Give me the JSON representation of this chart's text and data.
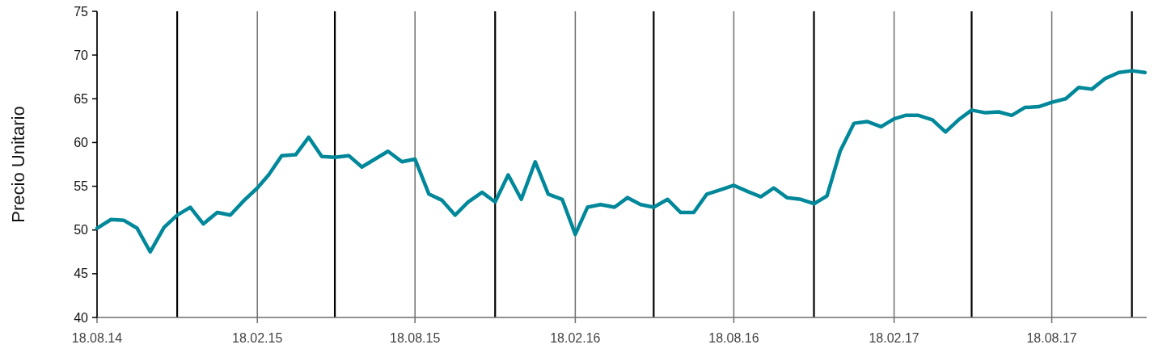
{
  "chart_data": {
    "type": "line",
    "ylabel": "Precio Unitario",
    "x": [
      "2014-08-18",
      "2014-09-03",
      "2014-09-18",
      "2014-10-03",
      "2014-10-18",
      "2014-11-03",
      "2014-11-18",
      "2014-12-03",
      "2014-12-18",
      "2015-01-03",
      "2015-01-18",
      "2015-02-03",
      "2015-02-18",
      "2015-03-03",
      "2015-03-18",
      "2015-04-03",
      "2015-04-18",
      "2015-05-03",
      "2015-05-18",
      "2015-06-03",
      "2015-06-18",
      "2015-07-03",
      "2015-07-18",
      "2015-08-03",
      "2015-08-18",
      "2015-09-03",
      "2015-09-18",
      "2015-10-03",
      "2015-10-18",
      "2015-11-03",
      "2015-11-18",
      "2015-12-03",
      "2015-12-18",
      "2016-01-03",
      "2016-01-18",
      "2016-02-03",
      "2016-02-18",
      "2016-03-03",
      "2016-03-18",
      "2016-04-03",
      "2016-04-18",
      "2016-05-03",
      "2016-05-18",
      "2016-06-03",
      "2016-06-18",
      "2016-07-03",
      "2016-07-18",
      "2016-08-03",
      "2016-08-18",
      "2016-09-03",
      "2016-09-18",
      "2016-10-03",
      "2016-10-18",
      "2016-11-03",
      "2016-11-18",
      "2016-12-03",
      "2016-12-18",
      "2017-01-03",
      "2017-01-18",
      "2017-02-03",
      "2017-02-18",
      "2017-03-03",
      "2017-03-18",
      "2017-04-03",
      "2017-04-18",
      "2017-05-03",
      "2017-05-18",
      "2017-06-03",
      "2017-06-18",
      "2017-07-03",
      "2017-07-18",
      "2017-08-03",
      "2017-08-18",
      "2017-09-03",
      "2017-09-18",
      "2017-10-03",
      "2017-10-18",
      "2017-11-03",
      "2017-11-18",
      "2017-12-03"
    ],
    "series": [
      {
        "color": "#00889a",
        "values": [
          50.2,
          51.2,
          51.1,
          50.2,
          47.5,
          50.3,
          51.7,
          52.6,
          50.7,
          52.0,
          51.7,
          53.4,
          54.8,
          56.3,
          58.5,
          58.6,
          60.6,
          58.4,
          58.3,
          58.5,
          57.2,
          58.1,
          59.0,
          57.8,
          58.1,
          54.1,
          53.4,
          51.7,
          53.2,
          54.3,
          53.2,
          56.3,
          53.5,
          57.8,
          54.1,
          53.5,
          49.5,
          52.6,
          52.9,
          52.6,
          53.7,
          52.9,
          52.6,
          53.5,
          52.0,
          52.0,
          54.1,
          54.6,
          55.1,
          54.4,
          53.8,
          54.8,
          53.7,
          53.5,
          53.0,
          53.9,
          59.0,
          62.2,
          62.4,
          61.8,
          62.7,
          63.1,
          63.1,
          62.6,
          61.2,
          62.6,
          63.7,
          63.4,
          63.5,
          63.1,
          64.0,
          64.1,
          64.6,
          65.0,
          66.3,
          66.1,
          67.3,
          68.0,
          68.2,
          68.0
        ]
      }
    ],
    "xlim": [
      "2014-08-18",
      "2017-12-05"
    ],
    "xticks": [
      {
        "value": "2014-08-18",
        "label": "18.08.14"
      },
      {
        "value": "2015-02-18",
        "label": "18.02.15"
      },
      {
        "value": "2015-08-18",
        "label": "18.08.15"
      },
      {
        "value": "2016-02-18",
        "label": "18.02.16"
      },
      {
        "value": "2016-08-18",
        "label": "18.08.16"
      },
      {
        "value": "2017-02-18",
        "label": "18.02.17"
      },
      {
        "value": "2017-08-18",
        "label": "18.08.17"
      }
    ],
    "ylim": [
      40,
      75
    ],
    "yticks": [
      40,
      45,
      50,
      55,
      60,
      65,
      70,
      75
    ],
    "grid": "x",
    "marker": "none",
    "line_style": "solid",
    "ref_lines": [
      {
        "axis": "x",
        "value": "2014-11-18",
        "color": "#000000"
      },
      {
        "axis": "x",
        "value": "2015-05-18",
        "color": "#000000"
      },
      {
        "axis": "x",
        "value": "2015-11-18",
        "color": "#000000"
      },
      {
        "axis": "x",
        "value": "2016-05-18",
        "color": "#000000"
      },
      {
        "axis": "x",
        "value": "2016-11-18",
        "color": "#000000"
      },
      {
        "axis": "x",
        "value": "2017-05-18",
        "color": "#000000"
      },
      {
        "axis": "x",
        "value": "2017-11-18",
        "color": "#000000"
      }
    ]
  }
}
